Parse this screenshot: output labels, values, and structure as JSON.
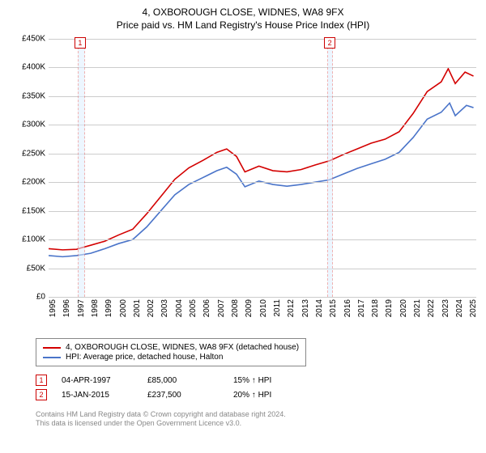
{
  "header": {
    "title": "4, OXBOROUGH CLOSE, WIDNES, WA8 9FX",
    "subtitle": "Price paid vs. HM Land Registry's House Price Index (HPI)"
  },
  "chart": {
    "type": "line",
    "background_color": "#ffffff",
    "grid_color": "#cccccc",
    "axis_color": "#888888",
    "label_fontsize": 10,
    "ylim": [
      0,
      450000
    ],
    "ytick_step": 50000,
    "yticks": [
      {
        "value": 0,
        "label": "£0"
      },
      {
        "value": 50000,
        "label": "£50K"
      },
      {
        "value": 100000,
        "label": "£100K"
      },
      {
        "value": 150000,
        "label": "£150K"
      },
      {
        "value": 200000,
        "label": "£200K"
      },
      {
        "value": 250000,
        "label": "£250K"
      },
      {
        "value": 300000,
        "label": "£300K"
      },
      {
        "value": 350000,
        "label": "£350K"
      },
      {
        "value": 400000,
        "label": "£400K"
      },
      {
        "value": 450000,
        "label": "£450K"
      }
    ],
    "xlim": [
      1995,
      2025.5
    ],
    "xticks": [
      "1995",
      "1996",
      "1997",
      "1998",
      "1999",
      "2000",
      "2001",
      "2002",
      "2003",
      "2004",
      "2005",
      "2006",
      "2007",
      "2008",
      "2009",
      "2010",
      "2011",
      "2012",
      "2013",
      "2014",
      "2015",
      "2016",
      "2017",
      "2018",
      "2019",
      "2020",
      "2021",
      "2022",
      "2023",
      "2024",
      "2025"
    ],
    "markers": [
      {
        "num": "1",
        "x": 1997.25,
        "band_start": 1997.1,
        "band_end": 1997.6
      },
      {
        "num": "2",
        "x": 2015.05,
        "band_start": 2014.85,
        "band_end": 2015.25
      }
    ],
    "series": [
      {
        "name": "4, OXBOROUGH CLOSE, WIDNES, WA8 9FX (detached house)",
        "color": "#d30000",
        "line_width": 1.6,
        "data": [
          [
            1995.0,
            84000
          ],
          [
            1996.0,
            82000
          ],
          [
            1997.0,
            83000
          ],
          [
            1997.25,
            85000
          ],
          [
            1998.0,
            90000
          ],
          [
            1999.0,
            97000
          ],
          [
            2000.0,
            108000
          ],
          [
            2001.0,
            118000
          ],
          [
            2002.0,
            145000
          ],
          [
            2003.0,
            175000
          ],
          [
            2004.0,
            205000
          ],
          [
            2005.0,
            225000
          ],
          [
            2006.0,
            238000
          ],
          [
            2007.0,
            252000
          ],
          [
            2007.7,
            258000
          ],
          [
            2008.4,
            245000
          ],
          [
            2009.0,
            218000
          ],
          [
            2010.0,
            228000
          ],
          [
            2011.0,
            220000
          ],
          [
            2012.0,
            218000
          ],
          [
            2013.0,
            222000
          ],
          [
            2014.0,
            230000
          ],
          [
            2015.05,
            237500
          ],
          [
            2016.0,
            248000
          ],
          [
            2017.0,
            258000
          ],
          [
            2018.0,
            268000
          ],
          [
            2019.0,
            275000
          ],
          [
            2020.0,
            288000
          ],
          [
            2021.0,
            320000
          ],
          [
            2022.0,
            358000
          ],
          [
            2023.0,
            375000
          ],
          [
            2023.5,
            398000
          ],
          [
            2024.0,
            372000
          ],
          [
            2024.7,
            392000
          ],
          [
            2025.3,
            385000
          ]
        ]
      },
      {
        "name": "HPI: Average price, detached house, Halton",
        "color": "#4a74c9",
        "line_width": 1.6,
        "data": [
          [
            1995.0,
            72000
          ],
          [
            1996.0,
            70000
          ],
          [
            1997.0,
            72000
          ],
          [
            1998.0,
            76000
          ],
          [
            1999.0,
            84000
          ],
          [
            2000.0,
            93000
          ],
          [
            2001.0,
            100000
          ],
          [
            2002.0,
            122000
          ],
          [
            2003.0,
            150000
          ],
          [
            2004.0,
            178000
          ],
          [
            2005.0,
            196000
          ],
          [
            2006.0,
            208000
          ],
          [
            2007.0,
            220000
          ],
          [
            2007.7,
            226000
          ],
          [
            2008.4,
            214000
          ],
          [
            2009.0,
            192000
          ],
          [
            2010.0,
            202000
          ],
          [
            2011.0,
            196000
          ],
          [
            2012.0,
            193000
          ],
          [
            2013.0,
            196000
          ],
          [
            2014.0,
            200000
          ],
          [
            2015.0,
            204000
          ],
          [
            2016.0,
            214000
          ],
          [
            2017.0,
            224000
          ],
          [
            2018.0,
            232000
          ],
          [
            2019.0,
            240000
          ],
          [
            2020.0,
            252000
          ],
          [
            2021.0,
            278000
          ],
          [
            2022.0,
            310000
          ],
          [
            2023.0,
            322000
          ],
          [
            2023.6,
            338000
          ],
          [
            2024.0,
            316000
          ],
          [
            2024.8,
            334000
          ],
          [
            2025.3,
            330000
          ]
        ]
      }
    ]
  },
  "legend": {
    "items": [
      {
        "label": "4, OXBOROUGH CLOSE, WIDNES, WA8 9FX (detached house)",
        "color": "#d30000"
      },
      {
        "label": "HPI: Average price, detached house, Halton",
        "color": "#4a74c9"
      }
    ]
  },
  "events": [
    {
      "num": "1",
      "date": "04-APR-1997",
      "price": "£85,000",
      "delta": "15% ↑ HPI"
    },
    {
      "num": "2",
      "date": "15-JAN-2015",
      "price": "£237,500",
      "delta": "20% ↑ HPI"
    }
  ],
  "footnotes": {
    "line1": "Contains HM Land Registry data © Crown copyright and database right 2024.",
    "line2": "This data is licensed under the Open Government Licence v3.0."
  }
}
